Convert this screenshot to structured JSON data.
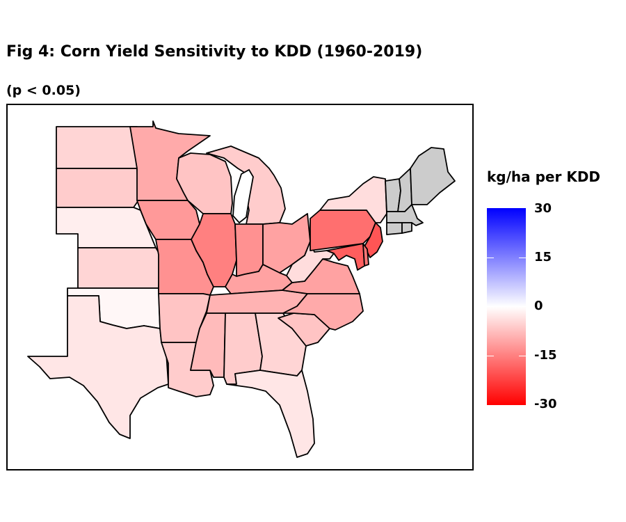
{
  "title": "Fig 4: Corn Yield Sensitivity to KDD (1960-2019)",
  "subtitle": "(p < 0.05)",
  "legend": {
    "title": "kg/ha per KDD",
    "ticks": [
      "30",
      "15",
      "0",
      "-15",
      "-30"
    ],
    "colors": {
      "high": "#0000ff",
      "mid": "#ffffff",
      "low": "#ff0000",
      "no_data": "#cccccc"
    },
    "range": [
      -30,
      30
    ]
  },
  "regions": [
    {
      "id": "ND",
      "value": -5
    },
    {
      "id": "SD",
      "value": -6
    },
    {
      "id": "NE",
      "value": -2
    },
    {
      "id": "KS",
      "value": -5
    },
    {
      "id": "OK",
      "value": -1
    },
    {
      "id": "TX",
      "value": -3
    },
    {
      "id": "MN",
      "value": -10
    },
    {
      "id": "IA",
      "value": -12
    },
    {
      "id": "MO",
      "value": -13
    },
    {
      "id": "AR",
      "value": -7
    },
    {
      "id": "LA",
      "value": -6
    },
    {
      "id": "WI",
      "value": -7
    },
    {
      "id": "IL",
      "value": -15
    },
    {
      "id": "MI",
      "value": -6
    },
    {
      "id": "IN",
      "value": -13
    },
    {
      "id": "OH",
      "value": -11
    },
    {
      "id": "KY",
      "value": -11
    },
    {
      "id": "TN",
      "value": -9
    },
    {
      "id": "MS",
      "value": -8
    },
    {
      "id": "AL",
      "value": -6
    },
    {
      "id": "GA",
      "value": -5
    },
    {
      "id": "FL",
      "value": -3
    },
    {
      "id": "SC",
      "value": -7
    },
    {
      "id": "NC",
      "value": -10
    },
    {
      "id": "VA",
      "value": -11
    },
    {
      "id": "WV",
      "value": -4
    },
    {
      "id": "PA",
      "value": -17
    },
    {
      "id": "NY",
      "value": -4
    },
    {
      "id": "NJ",
      "value": -20
    },
    {
      "id": "MD",
      "value": -19
    },
    {
      "id": "DE",
      "value": -16
    },
    {
      "id": "VT",
      "value": null
    },
    {
      "id": "NH",
      "value": null
    },
    {
      "id": "ME",
      "value": null
    },
    {
      "id": "MA",
      "value": null
    },
    {
      "id": "CT",
      "value": null
    },
    {
      "id": "RI",
      "value": null
    }
  ]
}
